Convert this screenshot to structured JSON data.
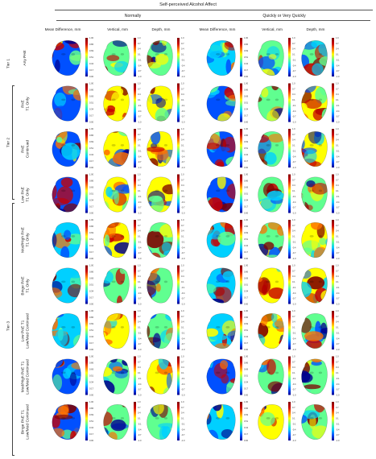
{
  "figure": {
    "title": "Self-perceived Alcohol Affect",
    "groups": [
      "Normally",
      "Quickly or Very Quickly"
    ],
    "columns": [
      "Mean Difference, mm",
      "Vertical, mm",
      "Depth, mm",
      "Mean Difference, mm",
      "Vertical, mm",
      "Depth, mm"
    ],
    "tiers": [
      "Tier 1",
      "Tier 2",
      "Tier 3"
    ],
    "rows": [
      {
        "label": [
          "Any PAE"
        ],
        "tier": 1
      },
      {
        "label": [
          "PAE",
          "T1 Only"
        ],
        "tier": 2
      },
      {
        "label": [
          "PAE",
          "Continued"
        ],
        "tier": 2
      },
      {
        "label": [
          "Low PAE",
          "T1 Only"
        ],
        "tier": 3
      },
      {
        "label": [
          "Mod/High PAE",
          "T1 Only"
        ],
        "tier": 3
      },
      {
        "label": [
          "Binge PAE",
          "T1 Only"
        ],
        "tier": 3
      },
      {
        "label": [
          "Low PAE T1",
          "Low/Mod Continued"
        ],
        "tier": 3
      },
      {
        "label": [
          "Mod/High PAE T1",
          "Low/Mod Continued"
        ],
        "tier": 3
      },
      {
        "label": [
          "Binge PAE T1",
          "Low/Mod Continued"
        ],
        "tier": 3
      }
    ],
    "colorbars": {
      "mean_difference_ticks": [
        "1.00",
        "0.86",
        "0.69",
        "0.51",
        "0.34",
        "0.17",
        "0.00"
      ],
      "signed_ticks": [
        "1.0",
        "0.7",
        "0.4",
        "0.1",
        "-0.1",
        "-0.4",
        "-0.7",
        "-1.0"
      ]
    },
    "colormap": [
      "#00008f",
      "#0050ff",
      "#00d0ff",
      "#60ff90",
      "#ffff00",
      "#ff7000",
      "#c80000",
      "#800000"
    ]
  }
}
